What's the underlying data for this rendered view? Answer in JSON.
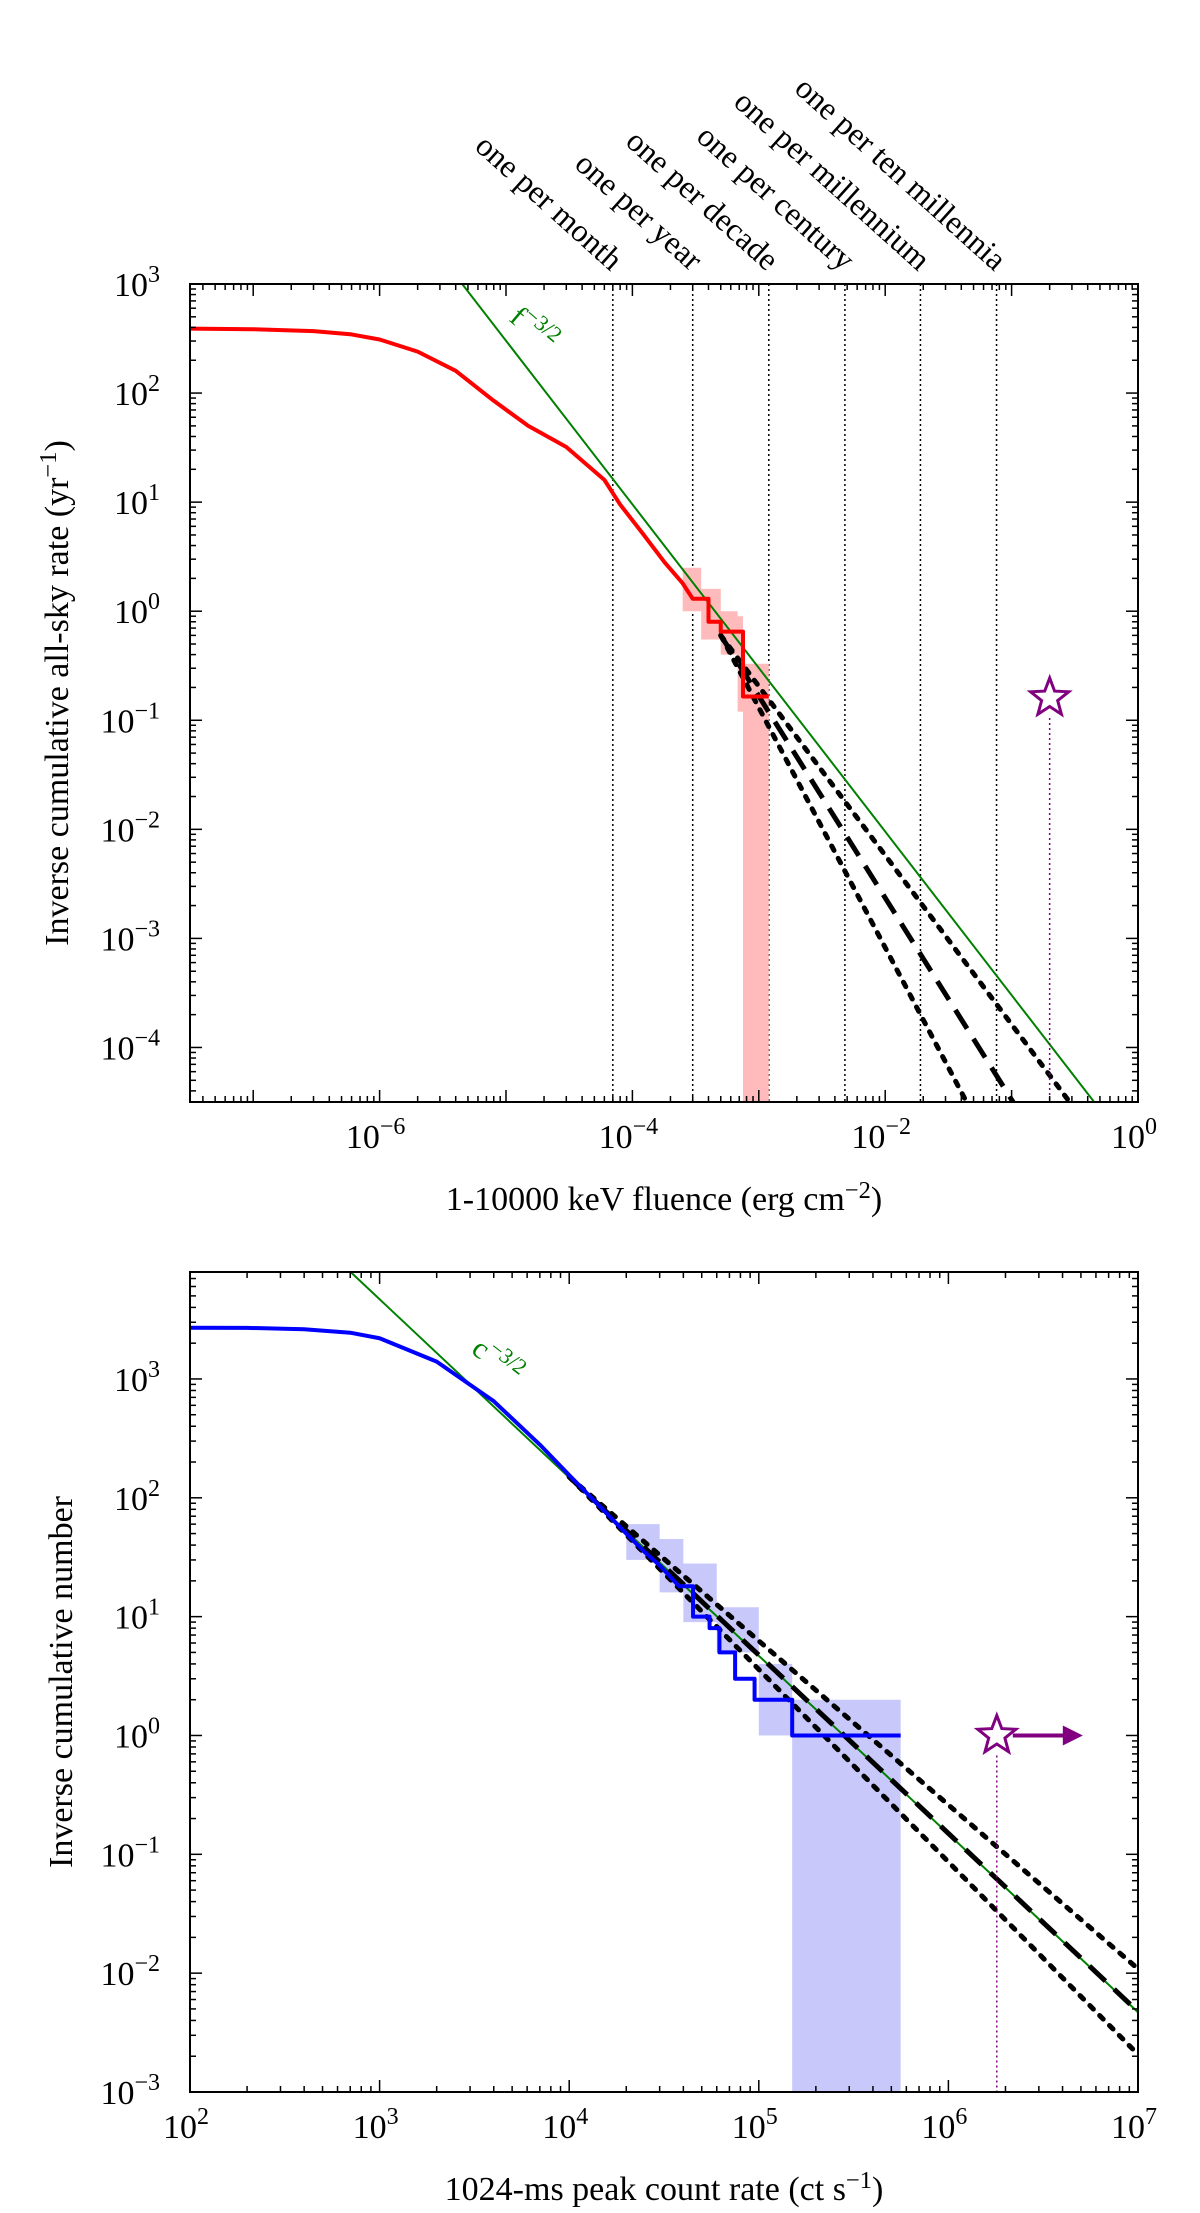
{
  "chart_data": [
    {
      "type": "line",
      "title": "",
      "xlabel": "1-10000 keV fluence (erg cm−2)",
      "ylabel": "Inverse cumulative all-sky rate (yr−1)",
      "xscale": "log",
      "yscale": "log",
      "xlim_exp": [
        -7.5,
        0
      ],
      "ylim_exp": [
        -4.5,
        3
      ],
      "x_ticks_exp": [
        -6,
        -4,
        -2,
        0
      ],
      "y_ticks_exp": [
        -4,
        -3,
        -2,
        -1,
        0,
        1,
        2,
        3
      ],
      "tick_base": "10",
      "rate_lines": [
        {
          "label": "one per month",
          "fluence": 7e-05
        },
        {
          "label": "one per year",
          "fluence": 0.0003
        },
        {
          "label": "one per decade",
          "fluence": 0.0012
        },
        {
          "label": "one per century",
          "fluence": 0.0048
        },
        {
          "label": "one per millennium",
          "fluence": 0.019
        },
        {
          "label": "one per ten millennia",
          "fluence": 0.076
        }
      ],
      "power_law_label": "f−3/2",
      "power_law": {
        "anchor_x": 4.5e-06,
        "anchor_y": 1000,
        "slope": -1.5
      },
      "series": [
        {
          "name": "observed",
          "color": "#ff0000",
          "x": [
            3e-08,
            1e-07,
            3e-07,
            6e-07,
            1e-06,
            2e-06,
            4e-06,
            8e-06,
            1.5e-05,
            3e-05,
            6e-05,
            8e-05,
            0.00012,
            0.00018,
            0.00025,
            0.0003
          ],
          "y": [
            390,
            385,
            370,
            345,
            310,
            240,
            160,
            85,
            50,
            32,
            16,
            9.5,
            5.2,
            2.8,
            1.8,
            1.3
          ],
          "steps": {
            "x": [
              0.0003,
              0.0004,
              0.0004,
              0.0005,
              0.0005,
              0.00075,
              0.00075,
              0.0012
            ],
            "y": [
              1.3,
              1.3,
              0.8,
              0.8,
              0.65,
              0.65,
              0.165,
              0.165
            ]
          }
        }
      ],
      "uncertainty_band": {
        "color": "#ffbbbb",
        "x": [
          0.00025,
          0.00035,
          0.0005,
          0.00068,
          0.00075,
          0.0012
        ],
        "lower": [
          1.0,
          0.55,
          0.4,
          0.12,
          3e-05,
          3e-05
        ],
        "upper": [
          2.5,
          1.6,
          1.0,
          0.9,
          0.33,
          0.33
        ]
      },
      "model_fit": {
        "anchor_x": 0.0005,
        "anchor_y": 0.6,
        "slopes": [
          -1.55,
          -1.85,
          -2.2
        ],
        "x_end": 0.5
      },
      "marker": {
        "label": "star",
        "x": 0.2,
        "y": 0.16,
        "color": "#800080",
        "arrow": false
      }
    },
    {
      "type": "line",
      "title": "",
      "xlabel": "1024-ms peak count rate (ct s−1)",
      "ylabel": "Inverse cumulative number",
      "xscale": "log",
      "yscale": "log",
      "xlim_exp": [
        2,
        7
      ],
      "ylim_exp": [
        -3,
        3.9
      ],
      "x_ticks_exp": [
        2,
        3,
        4,
        5,
        6,
        7
      ],
      "y_ticks_exp": [
        -3,
        -2,
        -1,
        0,
        1,
        2,
        3
      ],
      "tick_base": "10",
      "power_law_label": "c−3/2",
      "power_law": {
        "anchor_x": 700,
        "anchor_y": 8000,
        "slope": -1.5
      },
      "series": [
        {
          "name": "observed",
          "color": "#0000ff",
          "x": [
            100,
            200,
            400,
            700,
            1000,
            2000,
            4000,
            7000,
            10000,
            15000,
            20000,
            25000,
            30000,
            38000
          ],
          "y": [
            2700,
            2690,
            2620,
            2450,
            2200,
            1400,
            650,
            280,
            155,
            80,
            50,
            35,
            27,
            18
          ],
          "steps": {
            "x": [
              38000,
              45000,
              45000,
              55000,
              55000,
              62000,
              62000,
              75000,
              75000,
              95000,
              95000,
              150000,
              150000,
              560000
            ],
            "y": [
              18,
              18,
              10,
              10,
              8,
              8,
              5,
              5,
              3,
              3,
              2,
              2,
              1,
              1
            ]
          }
        }
      ],
      "uncertainty_band": {
        "color": "#c8c8fa",
        "x": [
          20000,
          30000,
          40000,
          60000,
          100000,
          150000,
          560000
        ],
        "lower": [
          30,
          16,
          9,
          5,
          1,
          0.001,
          0.001
        ],
        "upper": [
          60,
          45,
          28,
          12,
          4,
          2,
          2
        ]
      },
      "model_fit": {
        "anchor_x": 10000,
        "anchor_y": 150,
        "slopes": [
          -1.38,
          -1.5,
          -1.62
        ],
        "x_end": 10000000
      },
      "marker": {
        "label": "star",
        "x": 1800000,
        "y": 1,
        "color": "#800080",
        "arrow": true
      }
    }
  ]
}
